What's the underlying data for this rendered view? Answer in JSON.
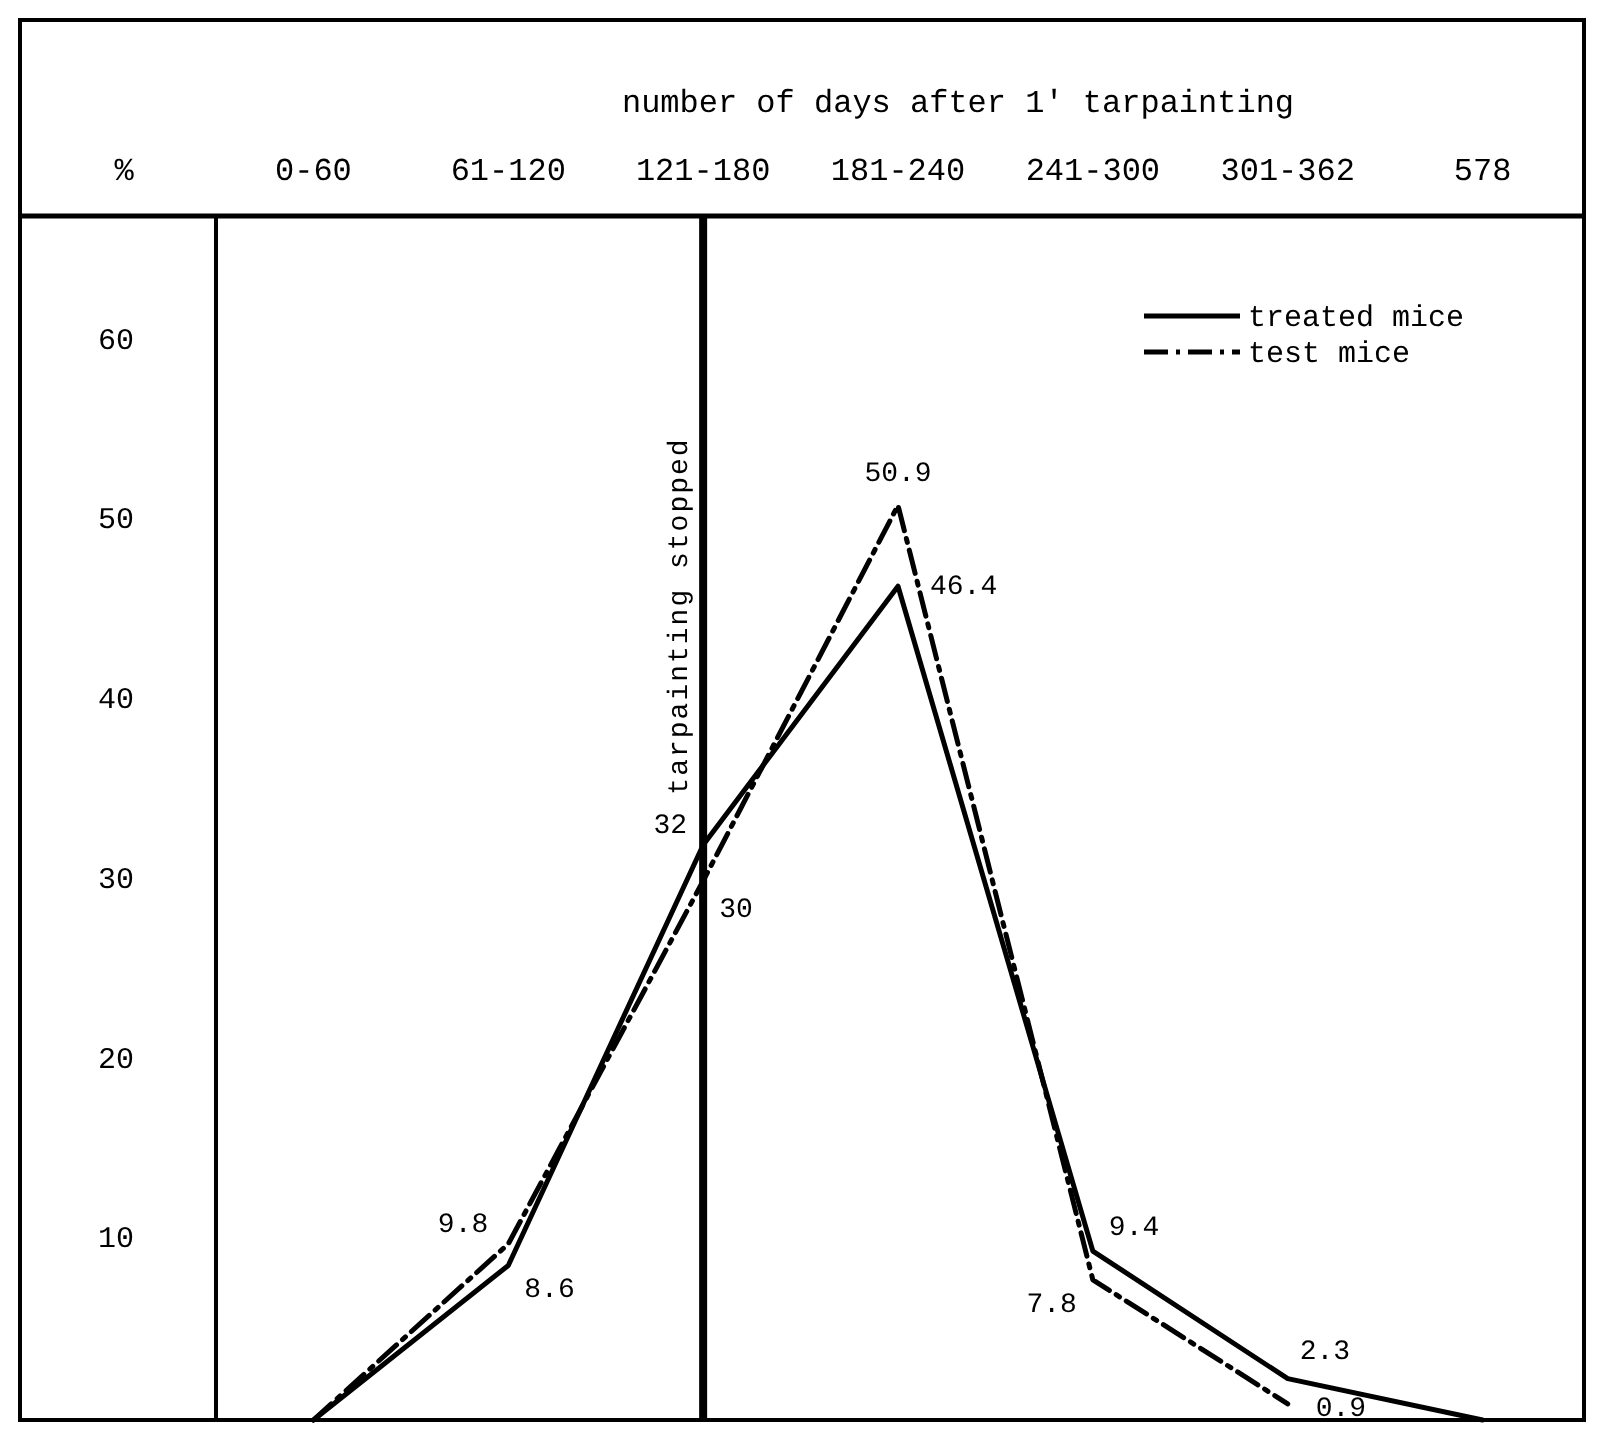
{
  "chart_data": {
    "type": "line",
    "xlabel": "number of days after 1' tarpainting",
    "ylabel": "%",
    "categories": [
      "0-60",
      "61-120",
      "121-180",
      "181-240",
      "241-300",
      "301-362",
      "578"
    ],
    "ylim": [
      0,
      67
    ],
    "yticks": [
      10,
      20,
      30,
      40,
      50,
      60
    ],
    "series": [
      {
        "name": "treated mice",
        "color": "#000000",
        "line_style": "solid",
        "values": [
          0,
          8.6,
          32,
          46.4,
          9.4,
          2.3,
          0
        ],
        "value_labels": [
          null,
          "8.6",
          "32",
          "46.4",
          "9.4",
          "2.3",
          null
        ]
      },
      {
        "name": "test mice",
        "color": "#000000",
        "line_style": "dashed",
        "values": [
          0,
          9.8,
          30,
          50.9,
          7.8,
          0.9,
          null
        ],
        "value_labels": [
          null,
          "9.8",
          "30",
          "50.9",
          "7.8",
          "0.9",
          null
        ]
      }
    ],
    "ref_lines": [
      {
        "axis": "x",
        "value": "121-180",
        "label": "tarpainting stopped"
      }
    ],
    "legend": "top right",
    "marker": "none"
  }
}
